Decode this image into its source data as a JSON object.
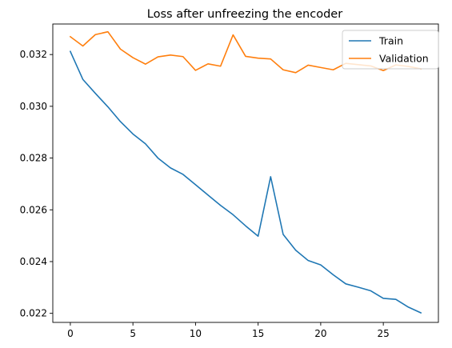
{
  "chart_data": {
    "type": "line",
    "title": "Loss after unfreezing the encoder",
    "xlabel": "",
    "ylabel": "",
    "xlim": [
      -1.4,
      29.4
    ],
    "ylim": [
      0.02165,
      0.03318
    ],
    "x_ticks": [
      0,
      5,
      10,
      15,
      20,
      25
    ],
    "x_tick_labels": [
      "0",
      "5",
      "10",
      "15",
      "20",
      "25"
    ],
    "y_ticks": [
      0.022,
      0.024,
      0.026,
      0.028,
      0.03,
      0.032
    ],
    "y_tick_labels": [
      "0.022",
      "0.024",
      "0.026",
      "0.028",
      "0.030",
      "0.032"
    ],
    "grid": false,
    "legend_position": "top-right",
    "x": [
      0,
      1,
      2,
      3,
      4,
      5,
      6,
      7,
      8,
      9,
      10,
      11,
      12,
      13,
      14,
      15,
      16,
      17,
      18,
      19,
      20,
      21,
      22,
      23,
      24,
      25,
      26,
      27,
      28
    ],
    "series": [
      {
        "name": "Train",
        "color": "#1f77b4",
        "values": [
          0.03212,
          0.03104,
          0.0305,
          0.02998,
          0.02941,
          0.02893,
          0.02855,
          0.028,
          0.02762,
          0.02737,
          0.02697,
          0.02657,
          0.02617,
          0.02581,
          0.02538,
          0.02498,
          0.02728,
          0.02505,
          0.02444,
          0.02404,
          0.02387,
          0.02349,
          0.02314,
          0.02301,
          0.02287,
          0.02258,
          0.02254,
          0.02224,
          0.02202
        ]
      },
      {
        "name": "Validation",
        "color": "#ff7f0e",
        "values": [
          0.03269,
          0.03233,
          0.03277,
          0.03288,
          0.03221,
          0.03188,
          0.03163,
          0.03191,
          0.03198,
          0.03192,
          0.03139,
          0.03164,
          0.03155,
          0.03276,
          0.03193,
          0.03186,
          0.03183,
          0.03141,
          0.0313,
          0.03159,
          0.0315,
          0.03141,
          0.03166,
          0.03161,
          0.03156,
          0.03138,
          0.0316,
          0.03154,
          0.03145
        ]
      }
    ]
  }
}
